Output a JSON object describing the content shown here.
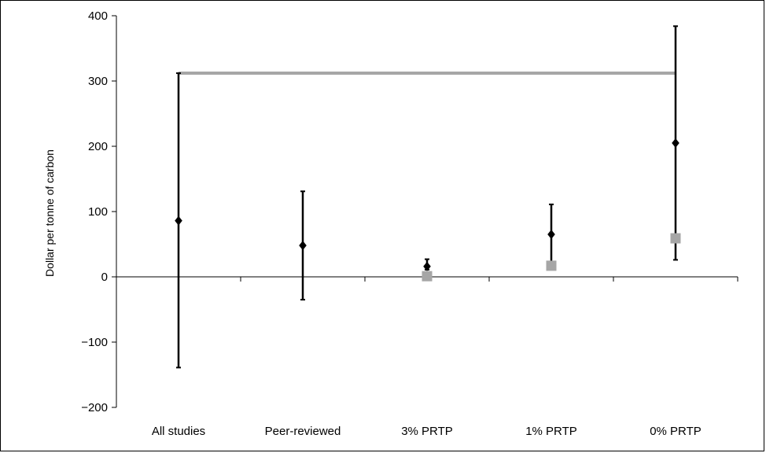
{
  "chart_data": {
    "type": "scatter",
    "title": "",
    "xlabel": "",
    "ylabel": "Dollar per tonne of carbon",
    "ylim": [
      -200,
      400
    ],
    "yticks": [
      400,
      300,
      200,
      100,
      0,
      -100,
      -200
    ],
    "ytick_labels": [
      "400",
      "300",
      "200",
      "100",
      "0",
      "−100",
      "−200"
    ],
    "categories": [
      "All studies",
      "Peer-reviewed",
      "3% PRTP",
      "1% PRTP",
      "0% PRTP"
    ],
    "grid": false,
    "legend": "none",
    "series": [
      {
        "marker": "diamond",
        "color": "#000000",
        "values": [
          86,
          48,
          16,
          65,
          205
        ],
        "error_low": [
          -139,
          -35,
          11,
          21,
          26
        ],
        "error_high": [
          312,
          131,
          27,
          111,
          384
        ]
      },
      {
        "marker": "square",
        "color": "#a6a6a6",
        "values": [
          null,
          null,
          1,
          17,
          59
        ]
      }
    ],
    "reference_line": {
      "value": 312,
      "from_category": "All studies",
      "to_category": "0% PRTP",
      "color": "#a6a6a6"
    }
  }
}
